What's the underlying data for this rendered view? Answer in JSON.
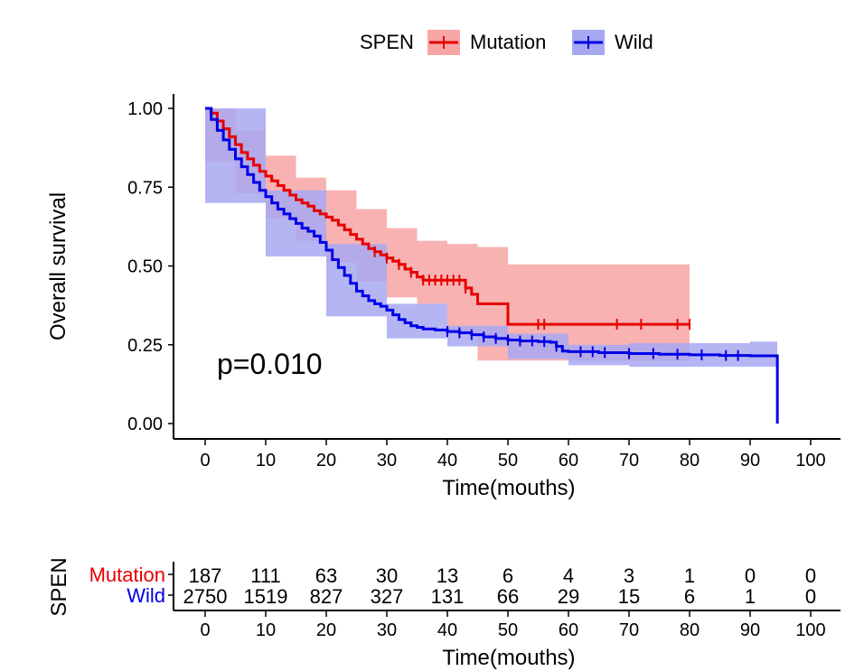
{
  "chart_data": {
    "type": "line",
    "subtype": "kaplan-meier",
    "ylabel": "Overall survival",
    "xlabel": "Time(mouths)",
    "xlim": [
      0,
      100
    ],
    "ylim": [
      0,
      1
    ],
    "xticks": [
      0,
      10,
      20,
      30,
      40,
      50,
      60,
      70,
      80,
      90,
      100
    ],
    "yticks": [
      "0.00",
      "0.25",
      "0.50",
      "0.75",
      "1.00"
    ],
    "annotation": "p=0.010",
    "legend": {
      "title": "SPEN",
      "position": "top",
      "entries": [
        {
          "label": "Mutation",
          "color": "#e60000"
        },
        {
          "label": "Wild",
          "color": "#0000e6"
        }
      ]
    },
    "series": [
      {
        "name": "Mutation",
        "color": "#e60000",
        "band_color": "#f7a5a5",
        "points": [
          [
            0,
            1.0
          ],
          [
            1,
            0.985
          ],
          [
            2,
            0.96
          ],
          [
            3,
            0.935
          ],
          [
            4,
            0.91
          ],
          [
            5,
            0.885
          ],
          [
            6,
            0.86
          ],
          [
            7,
            0.84
          ],
          [
            8,
            0.82
          ],
          [
            9,
            0.8
          ],
          [
            10,
            0.785
          ],
          [
            11,
            0.77
          ],
          [
            12,
            0.755
          ],
          [
            13,
            0.74
          ],
          [
            14,
            0.725
          ],
          [
            15,
            0.71
          ],
          [
            16,
            0.7
          ],
          [
            17,
            0.69
          ],
          [
            18,
            0.675
          ],
          [
            19,
            0.665
          ],
          [
            20,
            0.655
          ],
          [
            21,
            0.645
          ],
          [
            22,
            0.63
          ],
          [
            23,
            0.615
          ],
          [
            24,
            0.6
          ],
          [
            25,
            0.585
          ],
          [
            26,
            0.57
          ],
          [
            27,
            0.555
          ],
          [
            28,
            0.545
          ],
          [
            29,
            0.535
          ],
          [
            30,
            0.525
          ],
          [
            31,
            0.515
          ],
          [
            32,
            0.505
          ],
          [
            33,
            0.49
          ],
          [
            34,
            0.48
          ],
          [
            35,
            0.465
          ],
          [
            36,
            0.455
          ],
          [
            37,
            0.455
          ],
          [
            38,
            0.455
          ],
          [
            39,
            0.455
          ],
          [
            40,
            0.455
          ],
          [
            41,
            0.455
          ],
          [
            42,
            0.455
          ],
          [
            43,
            0.43
          ],
          [
            44,
            0.41
          ],
          [
            45,
            0.38
          ],
          [
            46,
            0.38
          ],
          [
            47,
            0.38
          ],
          [
            48,
            0.38
          ],
          [
            49,
            0.38
          ],
          [
            50,
            0.315
          ],
          [
            60,
            0.315
          ],
          [
            70,
            0.315
          ],
          [
            80,
            0.315
          ]
        ],
        "lower": [
          [
            0,
            1.0
          ],
          [
            5,
            0.83
          ],
          [
            10,
            0.73
          ],
          [
            15,
            0.65
          ],
          [
            20,
            0.58
          ],
          [
            25,
            0.51
          ],
          [
            30,
            0.45
          ],
          [
            35,
            0.4
          ],
          [
            40,
            0.38
          ],
          [
            45,
            0.29
          ],
          [
            50,
            0.2
          ],
          [
            60,
            0.2
          ],
          [
            70,
            0.2
          ],
          [
            80,
            0.2
          ]
        ],
        "upper": [
          [
            0,
            1.0
          ],
          [
            5,
            0.93
          ],
          [
            10,
            0.85
          ],
          [
            15,
            0.78
          ],
          [
            20,
            0.74
          ],
          [
            25,
            0.68
          ],
          [
            30,
            0.62
          ],
          [
            35,
            0.58
          ],
          [
            40,
            0.57
          ],
          [
            45,
            0.56
          ],
          [
            50,
            0.505
          ],
          [
            60,
            0.505
          ],
          [
            70,
            0.505
          ],
          [
            80,
            0.505
          ]
        ],
        "censor_x": [
          28,
          30,
          32,
          34,
          36,
          37,
          38,
          39,
          40,
          41,
          42,
          43,
          55,
          56,
          68,
          72,
          78,
          80
        ]
      },
      {
        "name": "Wild",
        "color": "#0000e6",
        "band_color": "#a8a8f2",
        "points": [
          [
            0,
            1.0
          ],
          [
            1,
            0.965
          ],
          [
            2,
            0.93
          ],
          [
            3,
            0.9
          ],
          [
            4,
            0.87
          ],
          [
            5,
            0.84
          ],
          [
            6,
            0.815
          ],
          [
            7,
            0.79
          ],
          [
            8,
            0.765
          ],
          [
            9,
            0.74
          ],
          [
            10,
            0.72
          ],
          [
            11,
            0.7
          ],
          [
            12,
            0.68
          ],
          [
            13,
            0.665
          ],
          [
            14,
            0.65
          ],
          [
            15,
            0.635
          ],
          [
            16,
            0.62
          ],
          [
            17,
            0.61
          ],
          [
            18,
            0.595
          ],
          [
            19,
            0.575
          ],
          [
            20,
            0.55
          ],
          [
            21,
            0.52
          ],
          [
            22,
            0.495
          ],
          [
            23,
            0.47
          ],
          [
            24,
            0.445
          ],
          [
            25,
            0.42
          ],
          [
            26,
            0.405
          ],
          [
            27,
            0.39
          ],
          [
            28,
            0.38
          ],
          [
            29,
            0.372
          ],
          [
            30,
            0.36
          ],
          [
            31,
            0.345
          ],
          [
            32,
            0.33
          ],
          [
            33,
            0.32
          ],
          [
            34,
            0.31
          ],
          [
            35,
            0.305
          ],
          [
            36,
            0.3
          ],
          [
            38,
            0.297
          ],
          [
            40,
            0.292
          ],
          [
            42,
            0.288
          ],
          [
            44,
            0.282
          ],
          [
            46,
            0.275
          ],
          [
            48,
            0.27
          ],
          [
            50,
            0.265
          ],
          [
            52,
            0.262
          ],
          [
            55,
            0.26
          ],
          [
            57,
            0.258
          ],
          [
            58,
            0.245
          ],
          [
            59,
            0.23
          ],
          [
            60,
            0.228
          ],
          [
            65,
            0.225
          ],
          [
            70,
            0.222
          ],
          [
            75,
            0.22
          ],
          [
            80,
            0.218
          ],
          [
            85,
            0.216
          ],
          [
            90,
            0.215
          ],
          [
            94.5,
            0.215
          ],
          [
            94.5,
            0.0
          ]
        ],
        "lower": [
          [
            0,
            1.0
          ],
          [
            10,
            0.7
          ],
          [
            20,
            0.53
          ],
          [
            30,
            0.34
          ],
          [
            40,
            0.27
          ],
          [
            50,
            0.245
          ],
          [
            60,
            0.205
          ],
          [
            70,
            0.185
          ],
          [
            80,
            0.18
          ],
          [
            90,
            0.18
          ],
          [
            94.5,
            0.18
          ]
        ],
        "upper": [
          [
            0,
            1.0
          ],
          [
            10,
            0.74
          ],
          [
            20,
            0.57
          ],
          [
            30,
            0.38
          ],
          [
            40,
            0.31
          ],
          [
            50,
            0.285
          ],
          [
            60,
            0.25
          ],
          [
            70,
            0.255
          ],
          [
            80,
            0.255
          ],
          [
            90,
            0.26
          ],
          [
            94.5,
            0.26
          ]
        ],
        "censor_x": [
          40,
          42,
          44,
          46,
          48,
          50,
          52,
          54,
          56,
          58,
          62,
          64,
          66,
          70,
          74,
          78,
          82,
          86,
          88
        ]
      }
    ],
    "risk_table": {
      "ylabel": "SPEN",
      "xlabel": "Time(mouths)",
      "rows": [
        {
          "label": "Mutation",
          "color": "#e60000",
          "values": [
            "187",
            "111",
            "63",
            "30",
            "13",
            "6",
            "4",
            "3",
            "1",
            "0",
            "0"
          ]
        },
        {
          "label": "Wild",
          "color": "#0000e6",
          "values": [
            "2750",
            "1519",
            "827",
            "327",
            "131",
            "66",
            "29",
            "15",
            "6",
            "1",
            "0"
          ]
        }
      ]
    }
  }
}
